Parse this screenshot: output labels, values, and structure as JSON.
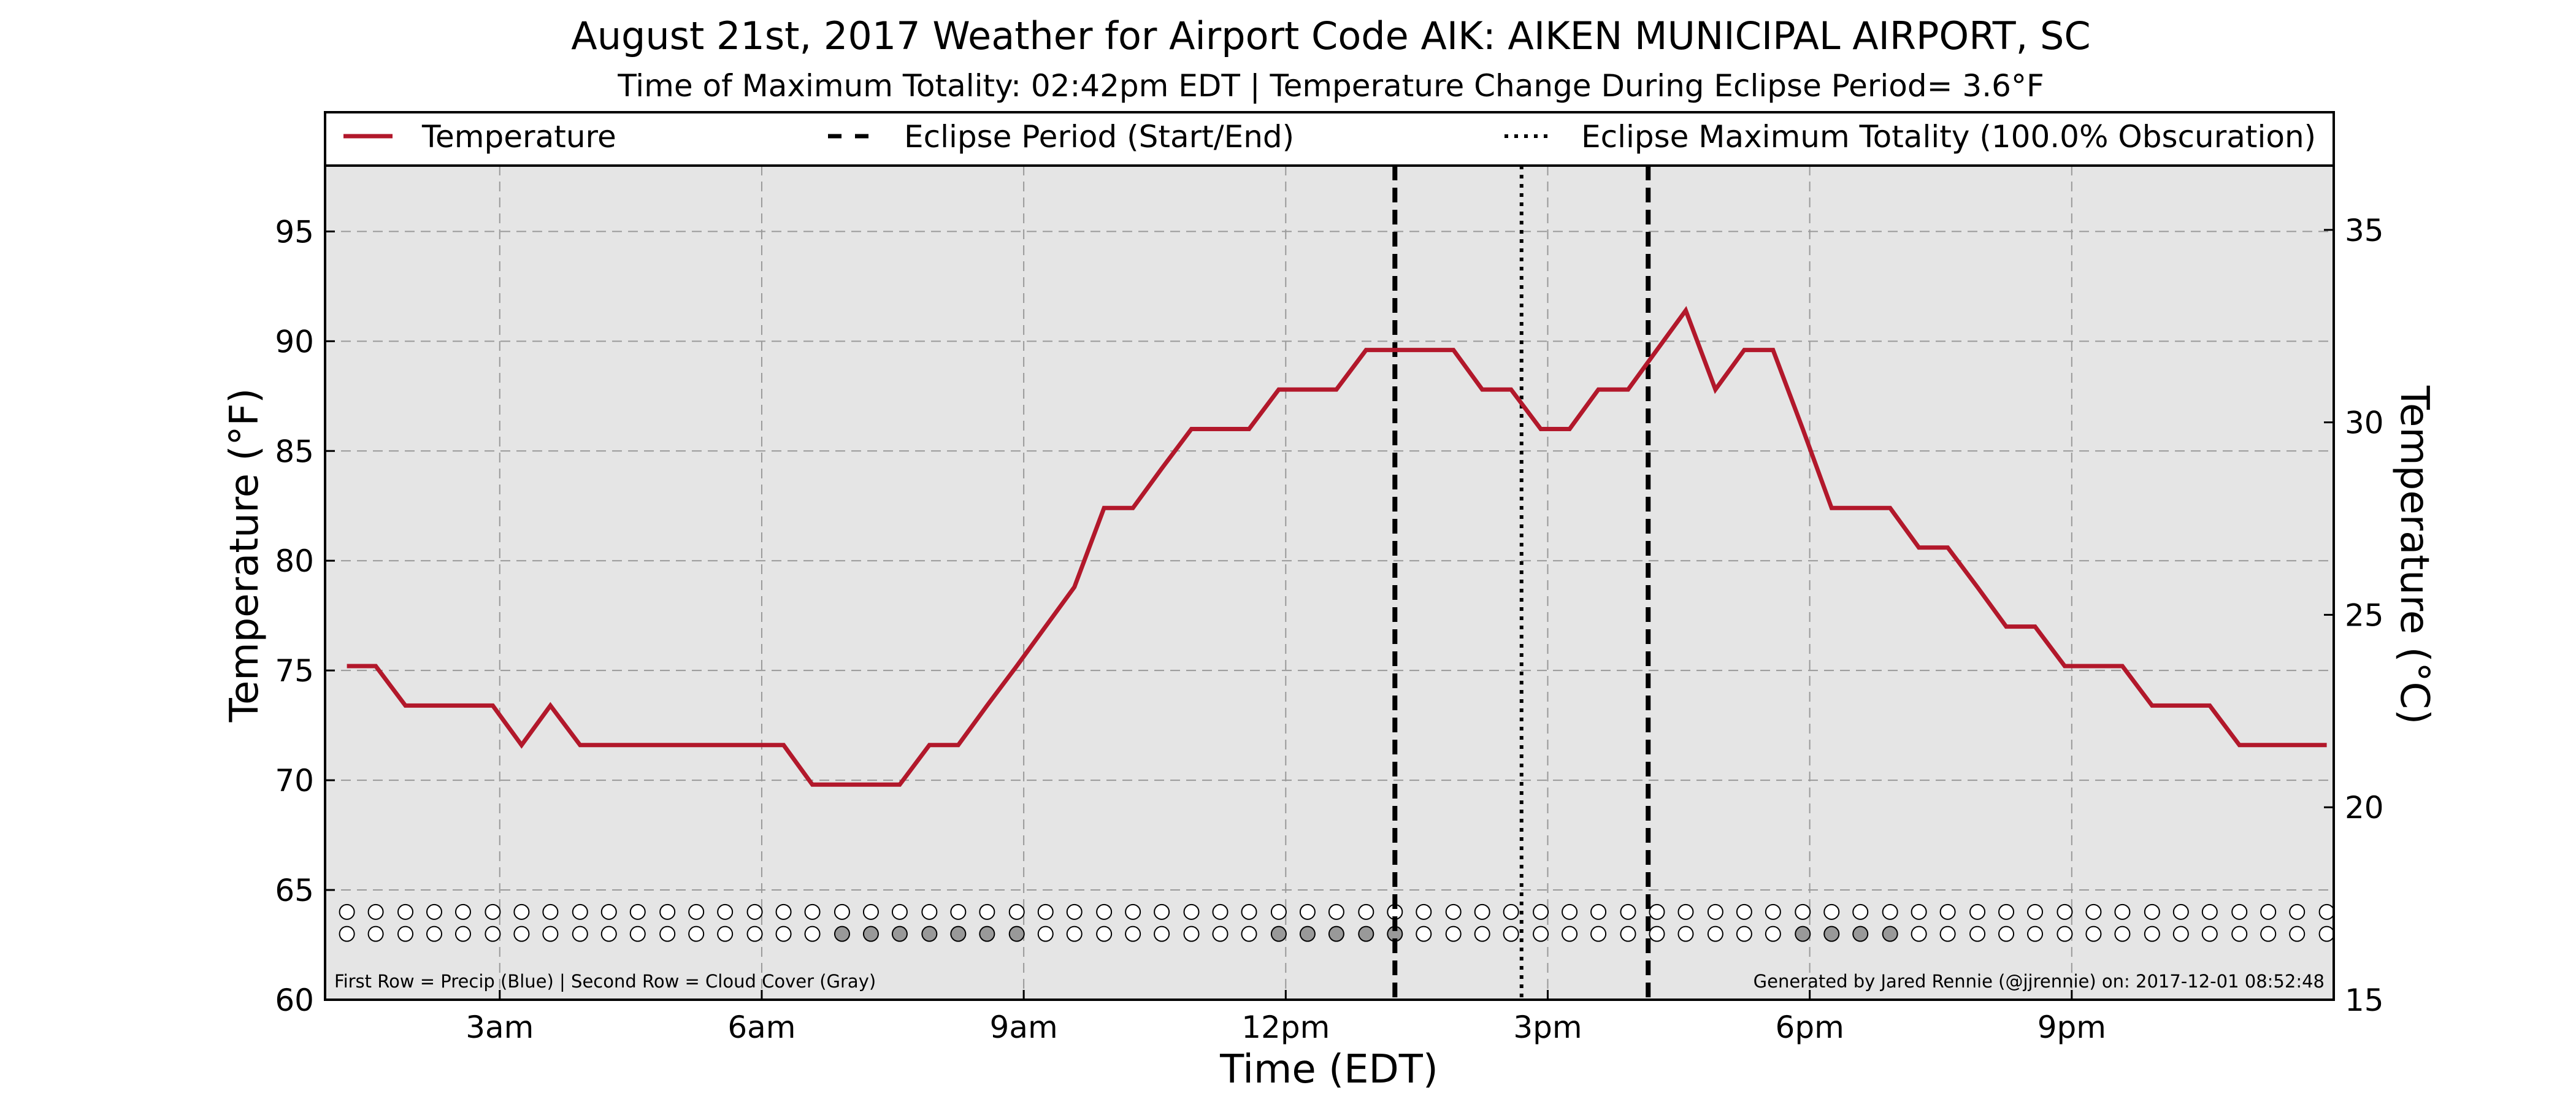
{
  "chart_data": {
    "type": "line",
    "title": "August 21st, 2017 Weather for Airport Code AIK: AIKEN MUNICIPAL AIRPORT, SC",
    "subtitle": "Time of Maximum Totality: 02:42pm EDT | Temperature Change During Eclipse Period= 3.6°F",
    "xlabel": "Time (EDT)",
    "ylabel": "Temperature (°F)",
    "ylabel_right": "Temperature (°C)",
    "xlim": [
      1.0,
      24.0
    ],
    "ylim": [
      60,
      98
    ],
    "ylim_right": [
      15,
      36.67
    ],
    "x_ticks": [
      {
        "x": 3,
        "label": "3am"
      },
      {
        "x": 6,
        "label": "6am"
      },
      {
        "x": 9,
        "label": "9am"
      },
      {
        "x": 12,
        "label": "12pm"
      },
      {
        "x": 15,
        "label": "3pm"
      },
      {
        "x": 18,
        "label": "6pm"
      },
      {
        "x": 21,
        "label": "9pm"
      }
    ],
    "y_ticks": [
      60,
      65,
      70,
      75,
      80,
      85,
      90,
      95
    ],
    "y_ticks_right": [
      15,
      20,
      25,
      30,
      35
    ],
    "grid": true,
    "legend_position": "top",
    "legend": {
      "temperature": "Temperature",
      "eclipse_period": "Eclipse Period (Start/End)",
      "max_totality": "Eclipse Maximum Totality (100.0% Obscuration)"
    },
    "series": [
      {
        "name": "Temperature",
        "color": "#b2182b",
        "x": [
          1.25,
          1.58,
          1.92,
          2.25,
          2.58,
          2.92,
          3.25,
          3.58,
          3.92,
          4.25,
          4.58,
          4.92,
          5.25,
          5.58,
          5.92,
          6.25,
          6.58,
          6.92,
          7.25,
          7.58,
          7.92,
          8.25,
          8.58,
          8.92,
          9.25,
          9.58,
          9.92,
          10.25,
          10.58,
          10.92,
          11.25,
          11.58,
          11.92,
          12.25,
          12.58,
          12.92,
          13.25,
          13.58,
          13.92,
          14.25,
          14.58,
          14.92,
          15.25,
          15.58,
          15.92,
          16.25,
          16.58,
          16.92,
          17.25,
          17.58,
          17.92,
          18.25,
          18.58,
          18.92,
          19.25,
          19.58,
          19.92,
          20.25,
          20.58,
          20.92,
          21.25,
          21.58,
          21.92,
          22.25,
          22.58,
          22.92,
          23.25,
          23.58,
          23.92
        ],
        "values": [
          75.2,
          75.2,
          73.4,
          73.4,
          73.4,
          73.4,
          71.6,
          73.4,
          71.6,
          71.6,
          71.6,
          71.6,
          71.6,
          71.6,
          71.6,
          71.6,
          69.8,
          69.8,
          69.8,
          69.8,
          71.6,
          71.6,
          73.4,
          75.2,
          77.0,
          78.8,
          82.4,
          82.4,
          84.2,
          86.0,
          86.0,
          86.0,
          87.8,
          87.8,
          87.8,
          89.6,
          89.6,
          89.6,
          89.6,
          87.8,
          87.8,
          86.0,
          86.0,
          87.8,
          87.8,
          89.6,
          91.4,
          87.8,
          89.6,
          89.6,
          86.0,
          82.4,
          82.4,
          82.4,
          80.6,
          80.6,
          78.8,
          77.0,
          77.0,
          75.2,
          75.2,
          75.2,
          73.4,
          73.4,
          73.4,
          71.6,
          71.6,
          71.6,
          71.6
        ]
      }
    ],
    "eclipse_start": 13.25,
    "eclipse_end": 16.15,
    "max_totality": 14.7,
    "weather_rows": {
      "precip_y": 64.0,
      "cloud_y": 63.0,
      "x": [
        1.25,
        1.58,
        1.92,
        2.25,
        2.58,
        2.92,
        3.25,
        3.58,
        3.92,
        4.25,
        4.58,
        4.92,
        5.25,
        5.58,
        5.92,
        6.25,
        6.58,
        6.92,
        7.25,
        7.58,
        7.92,
        8.25,
        8.58,
        8.92,
        9.25,
        9.58,
        9.92,
        10.25,
        10.58,
        10.92,
        11.25,
        11.58,
        11.92,
        12.25,
        12.58,
        12.92,
        13.25,
        13.58,
        13.92,
        14.25,
        14.58,
        14.92,
        15.25,
        15.58,
        15.92,
        16.25,
        16.58,
        16.92,
        17.25,
        17.58,
        17.92,
        18.25,
        18.58,
        18.92,
        19.25,
        19.58,
        19.92,
        20.25,
        20.58,
        20.92,
        21.25,
        21.58,
        21.92,
        22.25,
        22.58,
        22.92,
        23.25,
        23.58,
        23.92
      ],
      "cloud_gray": [
        6.92,
        7.25,
        7.58,
        7.92,
        8.25,
        8.58,
        8.92,
        11.92,
        12.25,
        12.58,
        12.92,
        13.25,
        17.92,
        18.25,
        18.58,
        18.92
      ]
    },
    "footnote_left": "First Row = Precip (Blue) | Second Row = Cloud Cover (Gray)",
    "footnote_right": "Generated by Jared Rennie (@jjrennie) on: 2017-12-01 08:52:48"
  }
}
